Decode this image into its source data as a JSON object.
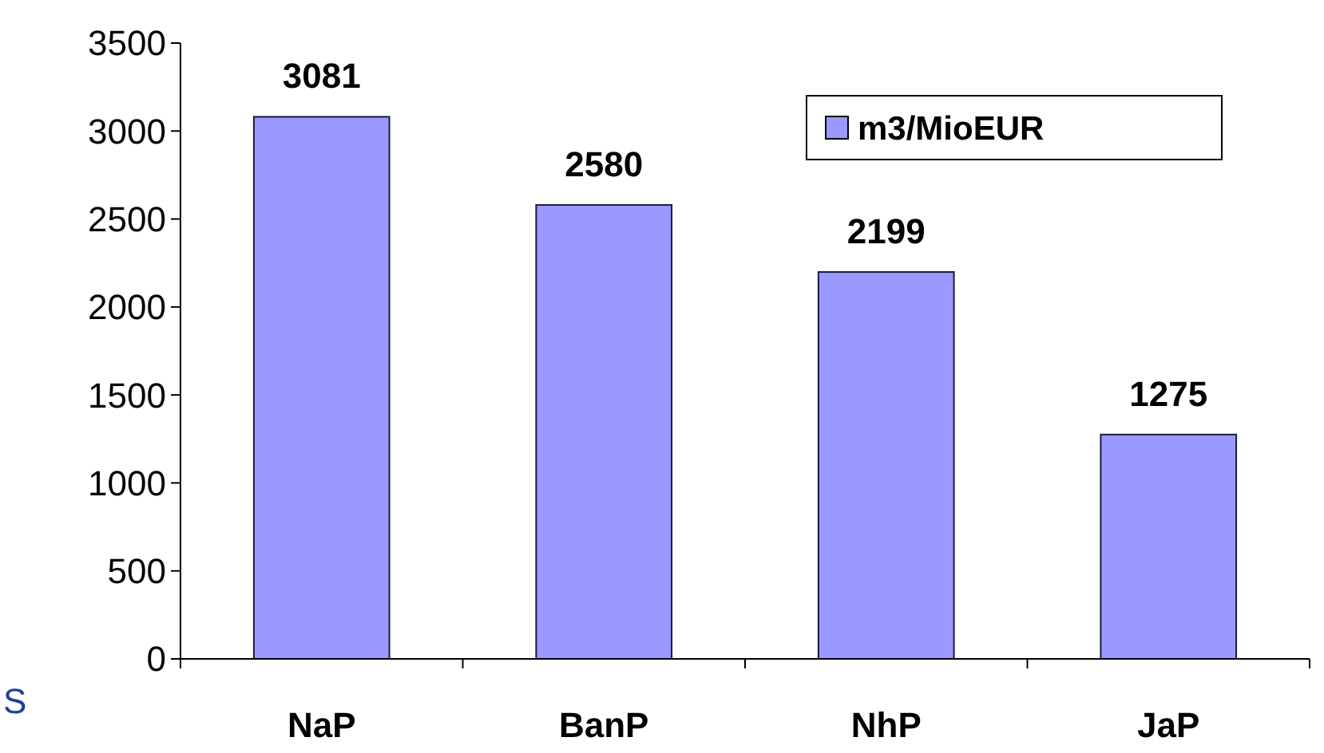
{
  "chart_data": {
    "type": "bar",
    "categories": [
      "NaP",
      "BanP",
      "NhP",
      "JaP"
    ],
    "series": [
      {
        "name": "m3/MioEUR",
        "color": "#9999ff",
        "values": [
          3081,
          2580,
          2199,
          1275
        ]
      }
    ],
    "ylim": [
      0,
      3500
    ],
    "yticks": [
      0,
      500,
      1000,
      1500,
      2000,
      2500,
      3000,
      3500
    ],
    "data_labels": true,
    "legend": "top right",
    "grid": false,
    "annotations": [
      "S"
    ]
  }
}
